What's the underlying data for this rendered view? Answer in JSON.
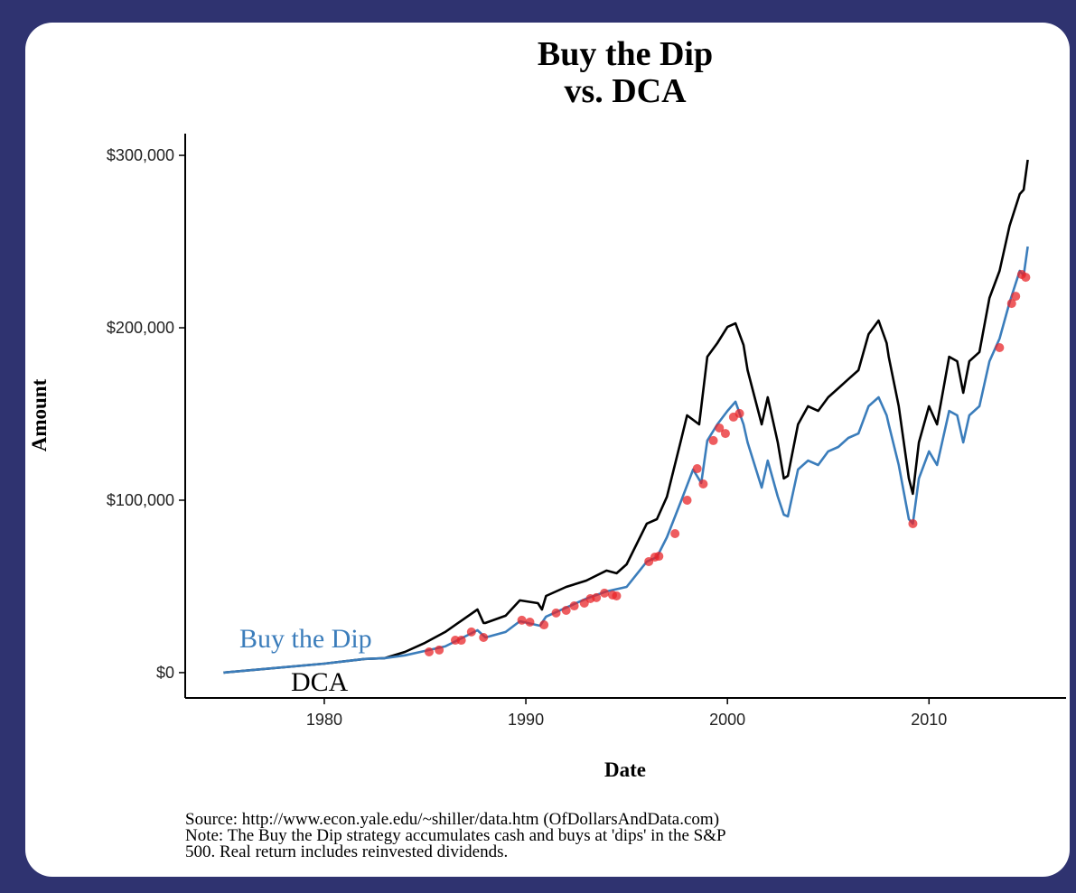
{
  "chart_data": {
    "type": "line",
    "title": [
      "Buy the Dip",
      "vs. DCA"
    ],
    "xlabel": "Date",
    "ylabel": "Amount",
    "caption": [
      "Source:  http://www.econ.yale.edu/~shiller/data.htm (OfDollarsAndData.com)",
      "Note: The Buy the Dip strategy accumulates cash and buys at 'dips' in the S&P",
      "500. Real return includes reinvested dividends."
    ],
    "xlim": [
      1973.1,
      2016.8
    ],
    "xticks": [
      1980,
      1990,
      2000,
      2010
    ],
    "ylim": [
      -14700,
      312600
    ],
    "yticks": [
      {
        "value": 0,
        "label": "$0"
      },
      {
        "value": 100000,
        "label": "$100,000"
      },
      {
        "value": 200000,
        "label": "$200,000"
      },
      {
        "value": 300000,
        "label": "$300,000"
      }
    ],
    "series": [
      {
        "name": "DCA",
        "color": "#000000",
        "x": [
          1975,
          1980,
          1982,
          1983,
          1984,
          1985,
          1986,
          1987.6,
          1987.9,
          1988,
          1989,
          1989.7,
          1990.6,
          1990.8,
          1991,
          1992,
          1993,
          1994,
          1994.5,
          1995,
          1996,
          1996.5,
          1997,
          1997.7,
          1998,
          1998.6,
          1999,
          1999.5,
          2000,
          2000.4,
          2000.8,
          2001,
          2001.7,
          2002,
          2002.5,
          2002.8,
          2003,
          2003.5,
          2004,
          2004.5,
          2005,
          2005.5,
          2006,
          2006.5,
          2007,
          2007.5,
          2007.9,
          2008,
          2008.5,
          2009,
          2009.2,
          2009.5,
          2010,
          2010.4,
          2011,
          2011.4,
          2011.7,
          2012,
          2012.5,
          2013,
          2013.5,
          2014,
          2014.5,
          2014.7,
          2014.9
        ],
        "values": [
          0,
          5200,
          7900,
          8400,
          12000,
          17300,
          23600,
          36600,
          28800,
          28800,
          33000,
          41900,
          40300,
          36600,
          44500,
          49700,
          53400,
          59200,
          57600,
          62800,
          86400,
          89000,
          102000,
          135000,
          149200,
          144000,
          183200,
          191100,
          200500,
          202600,
          190000,
          175400,
          144000,
          159700,
          133500,
          112600,
          114100,
          144000,
          154500,
          151800,
          159700,
          164900,
          170200,
          175400,
          196300,
          204200,
          191100,
          183200,
          154500,
          112600,
          103700,
          133500,
          154500,
          144000,
          183200,
          180600,
          162300,
          180600,
          185900,
          217300,
          233000,
          259200,
          277500,
          280100,
          297400
        ]
      },
      {
        "name": "Buy the Dip",
        "color": "#3b7dbb",
        "x": [
          1975,
          1980,
          1982,
          1983,
          1984,
          1985,
          1986,
          1987.6,
          1988,
          1989,
          1989.7,
          1990.7,
          1991,
          1992,
          1993,
          1994,
          1995,
          1996,
          1996.5,
          1997,
          1997.7,
          1998.3,
          1998.7,
          1999,
          1999.5,
          2000,
          2000.4,
          2000.8,
          2001,
          2001.7,
          2002,
          2002.5,
          2002.8,
          2003,
          2003.5,
          2004,
          2004.5,
          2005,
          2005.5,
          2006,
          2006.5,
          2007,
          2007.5,
          2007.9,
          2008,
          2008.5,
          2009,
          2009.2,
          2009.5,
          2010,
          2010.4,
          2011,
          2011.4,
          2011.7,
          2012,
          2012.5,
          2013,
          2013.5,
          2014,
          2014.5,
          2014.7,
          2014.9
        ],
        "values": [
          0,
          5200,
          7900,
          8400,
          10000,
          12600,
          15200,
          24600,
          20400,
          23600,
          29800,
          27200,
          32500,
          37700,
          42900,
          47100,
          49700,
          64400,
          67000,
          78500,
          99500,
          117800,
          110000,
          134600,
          144000,
          151800,
          157100,
          144000,
          133500,
          107300,
          123000,
          102100,
          91600,
          90600,
          117800,
          123000,
          120400,
          128300,
          130900,
          136100,
          138700,
          154500,
          159700,
          149200,
          144000,
          120400,
          89000,
          86400,
          112600,
          128300,
          120400,
          151800,
          149200,
          133500,
          149200,
          154500,
          180600,
          193700,
          214700,
          233000,
          230400,
          247100
        ]
      }
    ],
    "dips": {
      "color": "#e8262a",
      "x": [
        1985.2,
        1985.7,
        1986.5,
        1986.8,
        1987.3,
        1987.9,
        1989.8,
        1990.2,
        1990.9,
        1991.5,
        1992.0,
        1992.4,
        1992.9,
        1993.2,
        1993.5,
        1993.9,
        1994.3,
        1994.5,
        1996.1,
        1996.4,
        1996.6,
        1997.4,
        1998.0,
        1998.5,
        1998.8,
        1999.3,
        1999.6,
        1999.9,
        2000.3,
        2000.6,
        2009.2,
        2013.5,
        2014.1,
        2014.3,
        2014.6,
        2014.8
      ],
      "values": [
        12000,
        13100,
        18800,
        18800,
        23600,
        20400,
        30400,
        29300,
        27700,
        34600,
        36100,
        38700,
        40300,
        42900,
        43500,
        46100,
        45000,
        44500,
        64400,
        67000,
        67500,
        80600,
        100000,
        118300,
        109400,
        134600,
        141900,
        138700,
        148200,
        150300,
        86400,
        188500,
        214100,
        218300,
        230900,
        229300
      ]
    }
  }
}
